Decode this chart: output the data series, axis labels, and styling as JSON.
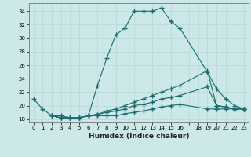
{
  "xlabel": "Humidex (Indice chaleur)",
  "bg_color": "#cce8e8",
  "line_color": "#1a6b6b",
  "grid_color": "#b8d8d8",
  "xlim": [
    -0.5,
    23.5
  ],
  "ylim": [
    17.5,
    35.2
  ],
  "xtick_labels": [
    "0",
    "1",
    "2",
    "3",
    "4",
    "5",
    "6",
    "7",
    "8",
    "9",
    "10",
    "11",
    "12",
    "13",
    "14",
    "15",
    "16",
    "",
    "18",
    "19",
    "20",
    "21",
    "22",
    "23"
  ],
  "xtick_pos": [
    0,
    1,
    2,
    3,
    4,
    5,
    6,
    7,
    8,
    9,
    10,
    11,
    12,
    13,
    14,
    15,
    16,
    17,
    18,
    19,
    20,
    21,
    22,
    23
  ],
  "yticks": [
    18,
    20,
    22,
    24,
    26,
    28,
    30,
    32,
    34
  ],
  "series1_x": [
    0,
    1,
    2,
    3,
    4,
    5,
    6,
    7,
    8,
    9,
    10,
    11,
    12,
    13,
    14,
    15,
    16,
    19,
    20,
    21,
    22,
    23
  ],
  "series1_y": [
    21,
    19.5,
    18.5,
    18.5,
    18.2,
    18.2,
    18.5,
    23,
    27,
    30.5,
    31.5,
    34,
    34,
    34,
    34.5,
    32.5,
    31.5,
    25,
    22.5,
    21,
    20,
    19.5
  ],
  "series2_x": [
    2,
    3,
    4,
    5,
    6,
    7,
    8,
    9,
    10,
    11,
    12,
    13,
    14,
    15,
    16,
    19,
    20,
    21,
    22,
    23
  ],
  "series2_y": [
    18.5,
    18.2,
    18.2,
    18.2,
    18.5,
    18.7,
    19.2,
    19.5,
    20.0,
    20.5,
    21.0,
    21.5,
    22.0,
    22.5,
    23.0,
    25.2,
    20.0,
    19.8,
    19.5,
    19.5
  ],
  "series3_x": [
    2,
    3,
    4,
    5,
    6,
    7,
    8,
    9,
    10,
    11,
    12,
    13,
    14,
    15,
    16,
    19,
    20,
    21,
    22,
    23
  ],
  "series3_y": [
    18.5,
    18.2,
    18.2,
    18.2,
    18.5,
    18.7,
    19.0,
    19.2,
    19.5,
    20.0,
    20.2,
    20.5,
    21.0,
    21.2,
    21.5,
    22.8,
    20.0,
    19.8,
    19.5,
    19.5
  ],
  "series4_x": [
    2,
    3,
    4,
    5,
    6,
    7,
    8,
    9,
    10,
    11,
    12,
    13,
    14,
    15,
    16,
    19,
    20,
    21,
    22,
    23
  ],
  "series4_y": [
    18.5,
    18.2,
    18.2,
    18.2,
    18.5,
    18.5,
    18.5,
    18.5,
    18.8,
    19.0,
    19.2,
    19.5,
    19.8,
    20.0,
    20.2,
    19.5,
    19.5,
    19.5,
    19.5,
    19.5
  ]
}
